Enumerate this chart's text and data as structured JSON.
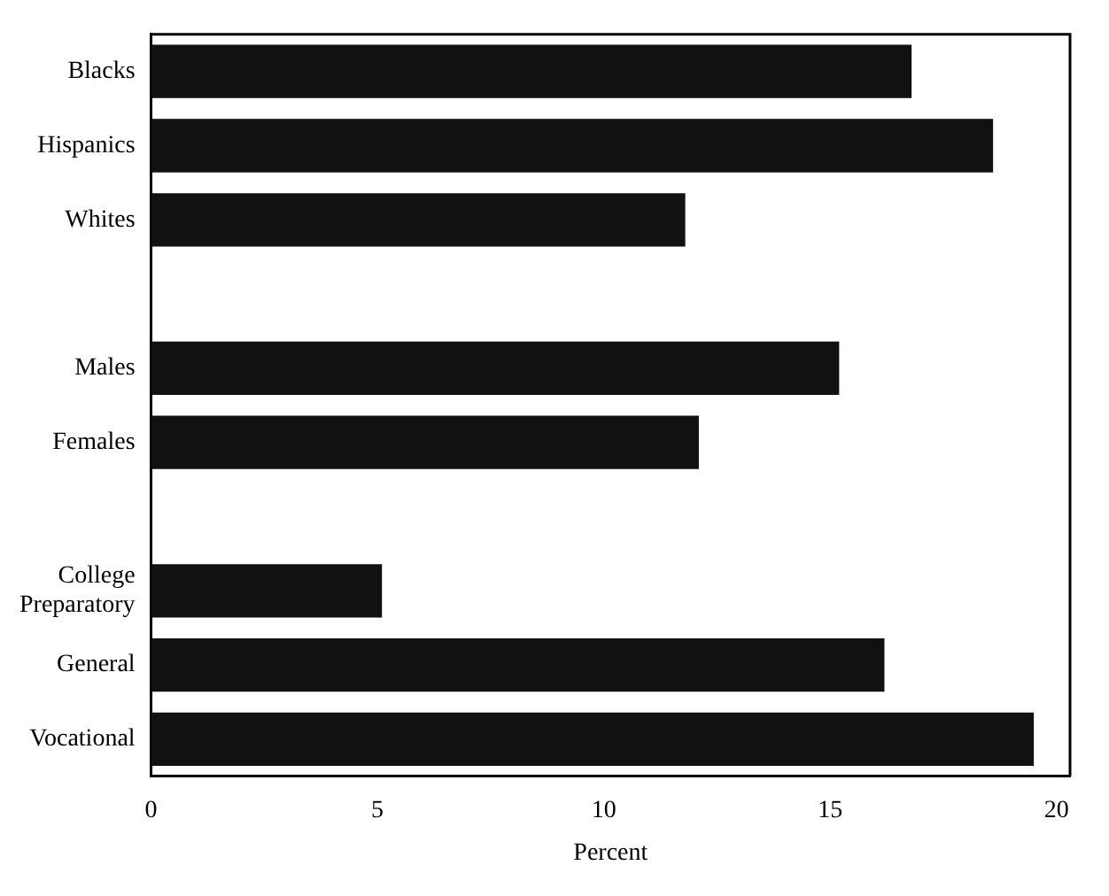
{
  "chart_data": {
    "type": "bar",
    "orientation": "horizontal",
    "xlabel": "Percent",
    "categories": [
      "Blacks",
      "Hispanics",
      "Whites",
      null,
      "Males",
      "Females",
      null,
      "College Preparatory",
      "General",
      "Vocational"
    ],
    "values": [
      16.8,
      18.6,
      11.8,
      null,
      15.2,
      12.1,
      null,
      5.1,
      16.2,
      19.5
    ],
    "color": "#111111",
    "xlim": [
      0,
      20.3
    ],
    "xticks": [
      0,
      5,
      10,
      15,
      20
    ],
    "grid": false,
    "legend": false
  }
}
